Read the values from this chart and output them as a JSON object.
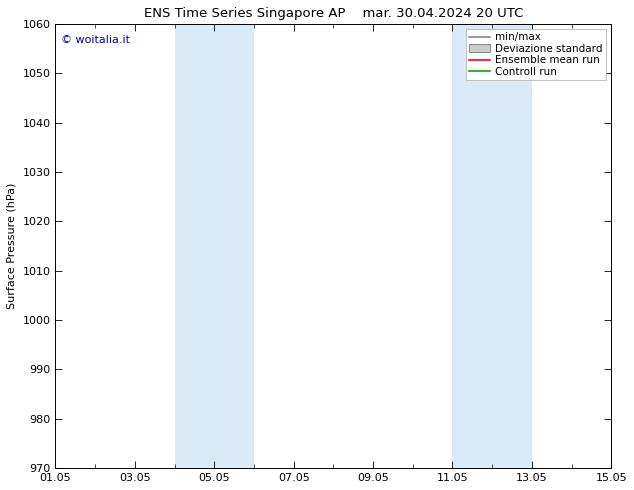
{
  "title_left": "ENS Time Series Singapore AP",
  "title_right": "mar. 30.04.2024 20 UTC",
  "ylabel": "Surface Pressure (hPa)",
  "ylim": [
    970,
    1060
  ],
  "yticks": [
    970,
    980,
    990,
    1000,
    1010,
    1020,
    1030,
    1040,
    1050,
    1060
  ],
  "xtick_labels": [
    "01.05",
    "03.05",
    "05.05",
    "07.05",
    "09.05",
    "11.05",
    "13.05",
    "15.05"
  ],
  "xtick_positions": [
    0,
    2,
    4,
    6,
    8,
    10,
    12,
    14
  ],
  "shade_bands": [
    {
      "x_start": 3.0,
      "x_end": 4.0
    },
    {
      "x_start": 4.0,
      "x_end": 5.0
    },
    {
      "x_start": 10.0,
      "x_end": 11.0
    },
    {
      "x_start": 11.0,
      "x_end": 12.0
    }
  ],
  "shade_color": "#daeaf7",
  "watermark": "© woitalia.it",
  "watermark_color": "#0000bb",
  "legend_entries": [
    {
      "label": "min/max",
      "color": "#888888",
      "type": "line"
    },
    {
      "label": "Deviazione standard",
      "color": "#cccccc",
      "type": "fill"
    },
    {
      "label": "Ensemble mean run",
      "color": "#ff0000",
      "type": "line"
    },
    {
      "label": "Controll run",
      "color": "#00aa00",
      "type": "line"
    }
  ],
  "bg_color": "#ffffff",
  "font_size": 8,
  "title_font_size": 9.5
}
